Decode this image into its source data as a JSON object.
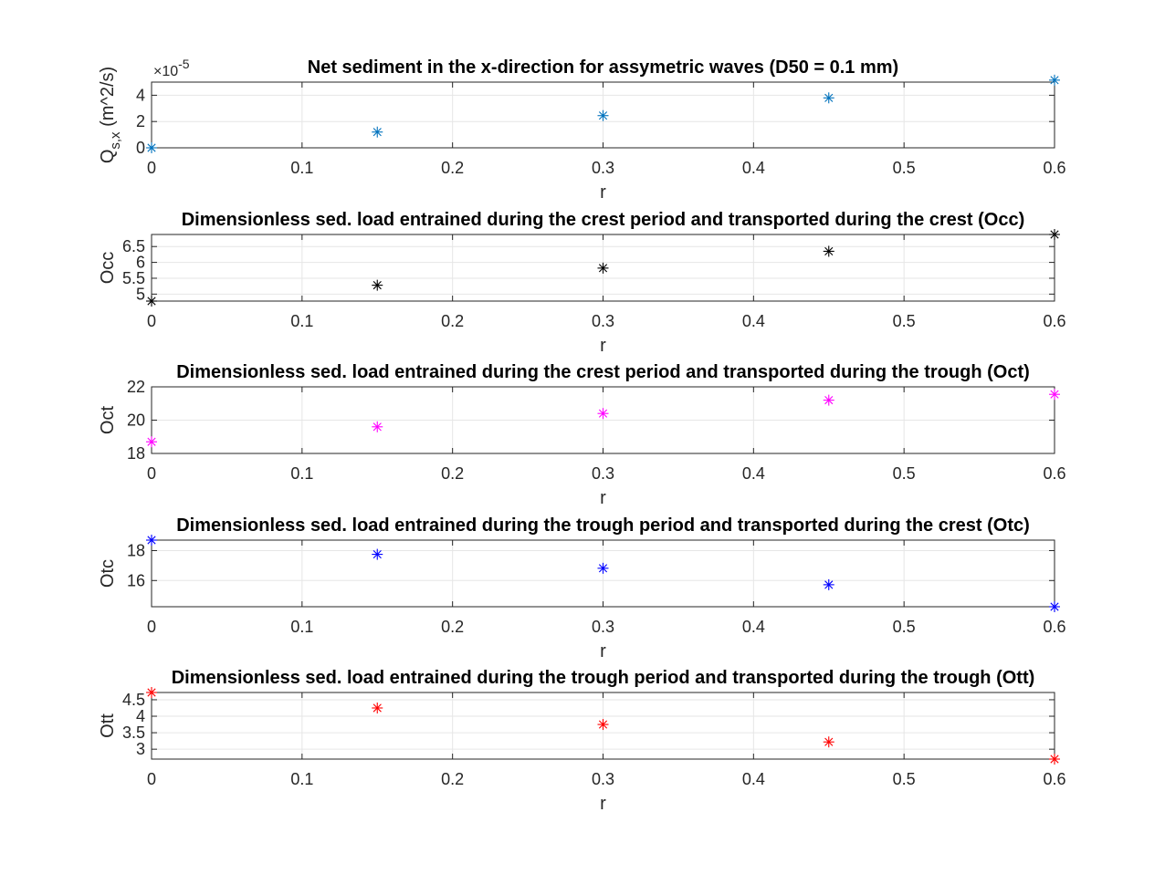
{
  "chart_data": [
    {
      "type": "scatter",
      "title": "Net sediment in the x-direction for assymetric waves (D50 = 0.1 mm)",
      "xlabel": "r",
      "ylabel_main": "Q",
      "ylabel_sub": "s,x",
      "ylabel_unit": " (m^2/s)",
      "exponent_label": "×10",
      "exponent": "-5",
      "x": [
        0,
        0.15,
        0.3,
        0.45,
        0.6
      ],
      "y": [
        0.0,
        1.2,
        2.45,
        3.8,
        5.15
      ],
      "xlim": [
        0,
        0.6
      ],
      "ylim": [
        0,
        5
      ],
      "xticks": [
        "0",
        "0.1",
        "0.2",
        "0.3",
        "0.4",
        "0.5",
        "0.6"
      ],
      "xtick_values": [
        0,
        0.1,
        0.2,
        0.3,
        0.4,
        0.5,
        0.6
      ],
      "yticks": [
        "0",
        "2",
        "4"
      ],
      "ytick_values": [
        0,
        2,
        4
      ],
      "color": "#0072BD",
      "marker": "*",
      "grid": true
    },
    {
      "type": "scatter",
      "title": "Dimensionless sed. load entrained during the crest period and transported during the crest (Occ)",
      "xlabel": "r",
      "ylabel_main": "Occ",
      "x": [
        0,
        0.15,
        0.3,
        0.45,
        0.6
      ],
      "y": [
        4.78,
        5.28,
        5.82,
        6.35,
        6.88
      ],
      "xlim": [
        0,
        0.6
      ],
      "ylim": [
        4.78,
        6.88
      ],
      "xticks": [
        "0",
        "0.1",
        "0.2",
        "0.3",
        "0.4",
        "0.5",
        "0.6"
      ],
      "xtick_values": [
        0,
        0.1,
        0.2,
        0.3,
        0.4,
        0.5,
        0.6
      ],
      "yticks": [
        "5",
        "5.5",
        "6",
        "6.5"
      ],
      "ytick_values": [
        5,
        5.5,
        6,
        6.5
      ],
      "color": "#000000",
      "marker": "*",
      "grid": true
    },
    {
      "type": "scatter",
      "title": "Dimensionless sed. load entrained during the crest period and transported during the  trough (Oct)",
      "xlabel": "r",
      "ylabel_main": "Oct",
      "x": [
        0,
        0.15,
        0.3,
        0.45,
        0.6
      ],
      "y": [
        18.7,
        19.6,
        20.4,
        21.2,
        21.55
      ],
      "xlim": [
        0,
        0.6
      ],
      "ylim": [
        18,
        22
      ],
      "xticks": [
        "0",
        "0.1",
        "0.2",
        "0.3",
        "0.4",
        "0.5",
        "0.6"
      ],
      "xtick_values": [
        0,
        0.1,
        0.2,
        0.3,
        0.4,
        0.5,
        0.6
      ],
      "yticks": [
        "18",
        "20",
        "22"
      ],
      "ytick_values": [
        18,
        20,
        22
      ],
      "color": "#FF00FF",
      "marker": "*",
      "grid": true
    },
    {
      "type": "scatter",
      "title": "Dimensionless sed. load entrained during the trough period and transported during the crest (Otc)",
      "xlabel": "r",
      "ylabel_main": "Otc",
      "x": [
        0,
        0.15,
        0.3,
        0.45,
        0.6
      ],
      "y": [
        18.7,
        17.75,
        16.82,
        15.72,
        14.25
      ],
      "xlim": [
        0,
        0.6
      ],
      "ylim": [
        14.25,
        18.7
      ],
      "xticks": [
        "0",
        "0.1",
        "0.2",
        "0.3",
        "0.4",
        "0.5",
        "0.6"
      ],
      "xtick_values": [
        0,
        0.1,
        0.2,
        0.3,
        0.4,
        0.5,
        0.6
      ],
      "yticks": [
        "16",
        "18"
      ],
      "ytick_values": [
        16,
        18
      ],
      "color": "#0000FF",
      "marker": "*",
      "grid": true
    },
    {
      "type": "scatter",
      "title": "Dimensionless sed. load entrained during the trough period and transported during the trough (Ott)",
      "xlabel": "r",
      "ylabel_main": "Ott",
      "x": [
        0,
        0.15,
        0.3,
        0.45,
        0.6
      ],
      "y": [
        4.72,
        4.25,
        3.75,
        3.22,
        2.7
      ],
      "xlim": [
        0,
        0.6
      ],
      "ylim": [
        2.7,
        4.72
      ],
      "xticks": [
        "0",
        "0.1",
        "0.2",
        "0.3",
        "0.4",
        "0.5",
        "0.6"
      ],
      "xtick_values": [
        0,
        0.1,
        0.2,
        0.3,
        0.4,
        0.5,
        0.6
      ],
      "yticks": [
        "3",
        "3.5",
        "4",
        "4.5"
      ],
      "ytick_values": [
        3,
        3.5,
        4,
        4.5
      ],
      "color": "#FF0000",
      "marker": "*",
      "grid": true
    }
  ]
}
